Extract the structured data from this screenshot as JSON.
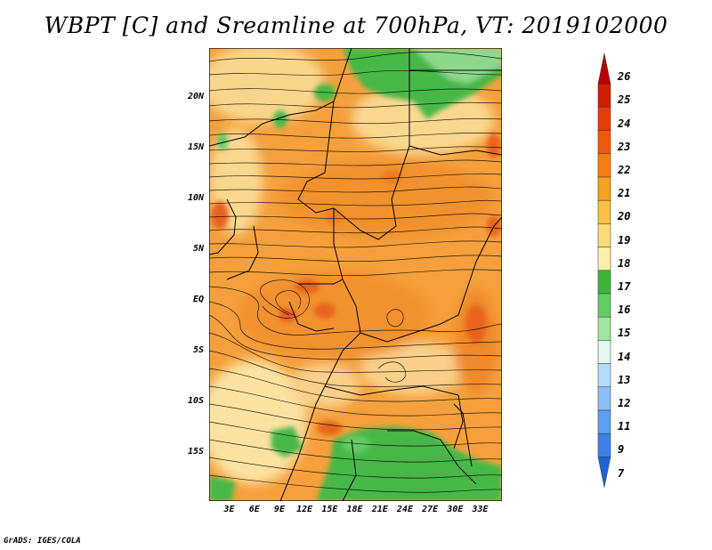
{
  "title": "WBPT [C] and Sreamline at 700hPa, VT: 2019102000",
  "credit": "GrADS: IGES/COLA",
  "map": {
    "lat_ticks": [
      {
        "label": "20N",
        "value": 20
      },
      {
        "label": "15N",
        "value": 15
      },
      {
        "label": "10N",
        "value": 10
      },
      {
        "label": "5N",
        "value": 5
      },
      {
        "label": "EQ",
        "value": 0
      },
      {
        "label": "5S",
        "value": -5
      },
      {
        "label": "10S",
        "value": -10
      },
      {
        "label": "15S",
        "value": -15
      }
    ],
    "lon_ticks": [
      {
        "label": "3E",
        "value": 3
      },
      {
        "label": "6E",
        "value": 6
      },
      {
        "label": "9E",
        "value": 9
      },
      {
        "label": "12E",
        "value": 12
      },
      {
        "label": "15E",
        "value": 15
      },
      {
        "label": "18E",
        "value": 18
      },
      {
        "label": "21E",
        "value": 21
      },
      {
        "label": "24E",
        "value": 24
      },
      {
        "label": "27E",
        "value": 27
      },
      {
        "label": "30E",
        "value": 30
      },
      {
        "label": "33E",
        "value": 33
      }
    ],
    "lon_range": [
      0.6,
      35.6
    ],
    "lat_range": [
      -19.8,
      24.8
    ]
  },
  "colorbar": {
    "labels": [
      "26",
      "25",
      "24",
      "23",
      "22",
      "21",
      "20",
      "19",
      "18",
      "17",
      "16",
      "15",
      "14",
      "13",
      "12",
      "11",
      "9",
      "7"
    ],
    "colors": [
      "#b40000",
      "#d21e00",
      "#e63c0a",
      "#f05a0a",
      "#f57d10",
      "#f8a020",
      "#fac040",
      "#fbdc78",
      "#fcf0a8",
      "#3cb43c",
      "#64cc64",
      "#a0e6a0",
      "#e0f8f0",
      "#b4dcfa",
      "#8cc0f5",
      "#5aa0f0",
      "#3c82e6",
      "#1e64d2"
    ]
  },
  "colors": {
    "warm": "#f5a03c",
    "deep_orange": "#ee7d22",
    "pale_yellow": "#fce8a0",
    "green": "#46b846",
    "light_green": "#7cd27c"
  }
}
